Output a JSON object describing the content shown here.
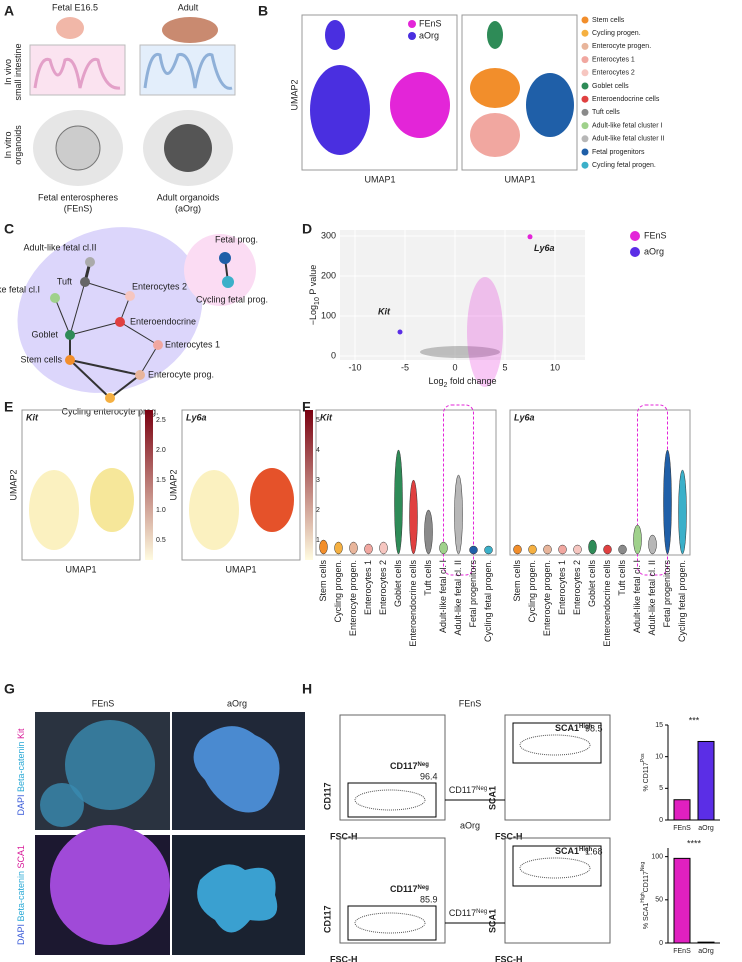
{
  "panel_a": {
    "letter": "A",
    "titles": [
      "Fetal E16.5",
      "Adult"
    ],
    "row_labels": [
      [
        "In vivo",
        "small intestine"
      ],
      [
        "In vitro",
        "organoids"
      ]
    ],
    "captions": [
      [
        "Fetal enterospheres",
        "(FEnS)"
      ],
      [
        "Adult organoids",
        "(aOrg)"
      ]
    ]
  },
  "panel_b": {
    "letter": "B",
    "legend": [
      "FEnS",
      "aOrg"
    ],
    "x_label": "UMAP1",
    "y_label": "UMAP2",
    "clusters": [
      {
        "name": "Stem cells",
        "color": "#f28e2b"
      },
      {
        "name": "Cycling progen.",
        "color": "#f5b041"
      },
      {
        "name": "Enterocyte progen.",
        "color": "#e8b59b"
      },
      {
        "name": "Enterocytes 1",
        "color": "#f1a7a0"
      },
      {
        "name": "Enterocytes 2",
        "color": "#f6c6c0"
      },
      {
        "name": "Goblet cells",
        "color": "#2e8b57"
      },
      {
        "name": "Enteroendocrine cells",
        "color": "#e04040"
      },
      {
        "name": "Tuft cells",
        "color": "#8a8a8a"
      },
      {
        "name": "Adult-like fetal cluster I",
        "color": "#9fd18b"
      },
      {
        "name": "Adult-like fetal cluster II",
        "color": "#b7b7b7"
      },
      {
        "name": "Fetal progenitors",
        "color": "#1f5fa8"
      },
      {
        "name": "Cycling fetal progen.",
        "color": "#3bb0c9"
      }
    ]
  },
  "panel_c": {
    "letter": "C",
    "nodes": [
      "Adult-like fetal cl.II",
      "Tuft",
      "Adult-like fetal cl.I",
      "Enterocytes 2",
      "Enteroendocrine",
      "Goblet",
      "Enterocytes 1",
      "Stem cells",
      "Enterocyte prog.",
      "Cycling enterocyte prog.",
      "Fetal prog.",
      "Cycling fetal prog."
    ]
  },
  "panel_d": {
    "letter": "D",
    "y_label": [
      "−Log",
      "10",
      " P value"
    ],
    "x_label": [
      "Log",
      "2",
      " fold change"
    ],
    "yticks": [
      0,
      100,
      200,
      300
    ],
    "xticks": [
      -10,
      -5,
      0,
      5,
      10
    ],
    "legend": [
      "FEnS",
      "aOrg"
    ],
    "genes": [
      {
        "name": "Ly6a",
        "x": 7.5,
        "y": 298
      },
      {
        "name": "Kit",
        "x": -5.5,
        "y": 60
      }
    ]
  },
  "panel_e": {
    "letter": "E",
    "genes": [
      "Kit",
      "Ly6a"
    ],
    "colorbar_ticks": [
      [
        "0.5",
        "1.0",
        "1.5",
        "2.0",
        "2.5"
      ],
      [
        "1",
        "2",
        "3",
        "4",
        "5"
      ]
    ],
    "x_label": "UMAP1",
    "y_label": "UMAP2"
  },
  "panel_f": {
    "letter": "F",
    "genes": [
      "Kit",
      "Ly6a"
    ],
    "categories": [
      "Stem cells",
      "Cycling progen.",
      "Enterocyte progen.",
      "Enterocytes 1",
      "Enterocytes 2",
      "Goblet cells",
      "Enteroendocrine cells",
      "Tuft cells",
      "Adult-like fetal cl. I",
      "Adult-like fetal cl. II",
      "Fetal progenitors",
      "Cycling fetal progen."
    ]
  },
  "panel_g": {
    "letter": "G",
    "columns": [
      "FEnS",
      "aOrg"
    ],
    "stains": [
      [
        "DAPI",
        "Beta-catenin",
        "Kit"
      ],
      [
        "DAPI",
        "Beta-catenin",
        "SCA1"
      ]
    ]
  },
  "panel_h": {
    "letter": "H",
    "groups": [
      {
        "title": "FEnS",
        "gate1": [
          "CD117",
          "Neg",
          "96.4"
        ],
        "gate2": [
          "SCA1",
          "High",
          "98.5"
        ],
        "bar": {
          "type": "bar",
          "y_label": [
            "% CD117",
            "Pos"
          ],
          "categories": [
            "FEnS",
            "aOrg"
          ],
          "values": [
            3.2,
            12.4
          ],
          "colors": [
            "#e020c0",
            "#5b2ee6"
          ],
          "ylim": [
            0,
            15
          ],
          "yticks": [
            0,
            5,
            10,
            15
          ],
          "significance": "***"
        }
      },
      {
        "title": "aOrg",
        "gate1": [
          "CD117",
          "Neg",
          "85.9"
        ],
        "gate2": [
          "SCA1",
          "High",
          "1.68"
        ],
        "bar": {
          "type": "bar",
          "y_label": [
            "% SCA1",
            "High",
            "CD117",
            "Neg"
          ],
          "categories": [
            "FEnS",
            "aOrg"
          ],
          "values": [
            98,
            1
          ],
          "colors": [
            "#e020c0",
            "#5b2ee6"
          ],
          "ylim": [
            0,
            110
          ],
          "yticks": [
            0,
            50,
            100
          ],
          "significance": "****"
        }
      }
    ],
    "arrow": [
      "CD117",
      "Neg"
    ],
    "axes": [
      "CD117",
      "FSC-H",
      "SCA1"
    ]
  }
}
